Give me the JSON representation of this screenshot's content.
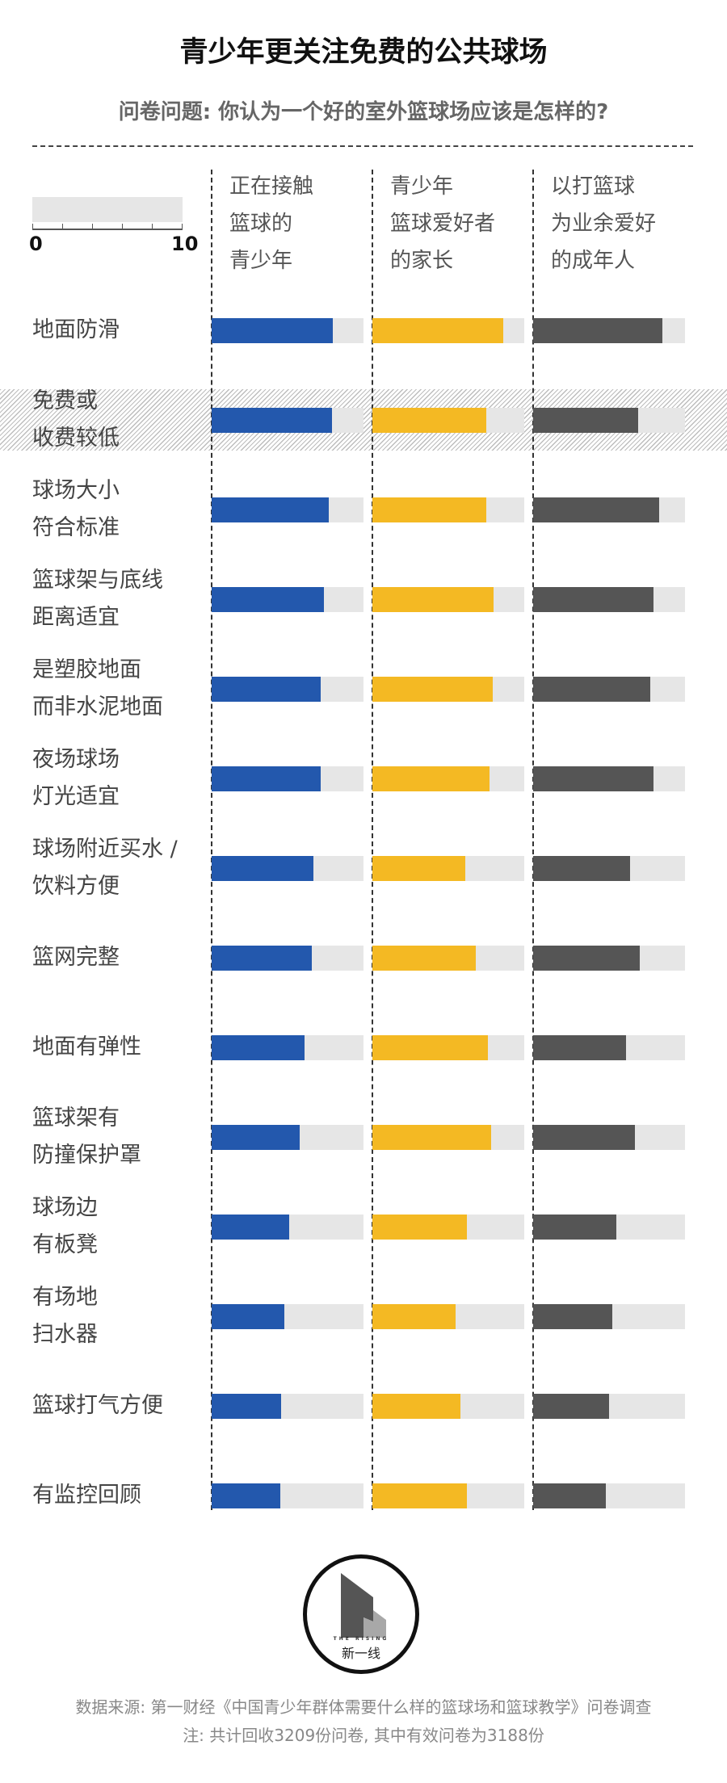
{
  "title": "青少年更关注免费的公共球场",
  "subtitle": "问卷问题: 你认为一个好的室外篮球场应该是怎样的?",
  "legend": {
    "min_label": "0",
    "max_label": "10"
  },
  "colors": {
    "series1": "#2358ad",
    "series2": "#f4b923",
    "series3": "#555555",
    "track": "#e6e6e6"
  },
  "chart_data": {
    "type": "bar",
    "orientation": "horizontal",
    "xlim": [
      0,
      10
    ],
    "highlighted_category": "免费或收费较低",
    "categories": [
      [
        "地面防滑"
      ],
      [
        "免费或",
        "收费较低"
      ],
      [
        "球场大小",
        "符合标准"
      ],
      [
        "篮球架与底线",
        "距离适宜"
      ],
      [
        "是塑胶地面",
        "而非水泥地面"
      ],
      [
        "夜场球场",
        "灯光适宜"
      ],
      [
        "球场附近买水 /",
        "饮料方便"
      ],
      [
        "篮网完整"
      ],
      [
        "地面有弹性"
      ],
      [
        "篮球架有",
        "防撞保护罩"
      ],
      [
        "球场边",
        "有板凳"
      ],
      [
        "有场地",
        "扫水器"
      ],
      [
        "篮球打气方便"
      ],
      [
        "有监控回顾"
      ]
    ],
    "series": [
      {
        "name_lines": [
          "正在接触",
          "篮球的",
          "青少年"
        ],
        "color": "#2358ad",
        "values": [
          8.0,
          7.9,
          7.7,
          7.4,
          7.2,
          7.2,
          6.7,
          6.6,
          6.1,
          5.8,
          5.1,
          4.8,
          4.6,
          4.5
        ]
      },
      {
        "name_lines": [
          "青少年",
          "篮球爱好者",
          "的家长"
        ],
        "color": "#f4b923",
        "values": [
          8.6,
          7.5,
          7.5,
          8.0,
          7.9,
          7.7,
          6.1,
          6.8,
          7.6,
          7.8,
          6.2,
          5.5,
          5.8,
          6.2
        ]
      },
      {
        "name_lines": [
          "以打篮球",
          "为业余爱好",
          "的成年人"
        ],
        "color": "#555555",
        "values": [
          8.5,
          6.9,
          8.3,
          7.9,
          7.7,
          7.9,
          6.4,
          7.0,
          6.1,
          6.7,
          5.5,
          5.2,
          5.0,
          4.8
        ]
      }
    ]
  },
  "logo": {
    "en": "THE RISING",
    "cn": "新一线"
  },
  "footer": {
    "source": "数据来源: 第一财经《中国青少年群体需要什么样的篮球场和篮球教学》问卷调查",
    "note": "注: 共计回收3209份问卷, 其中有效问卷为3188份"
  }
}
